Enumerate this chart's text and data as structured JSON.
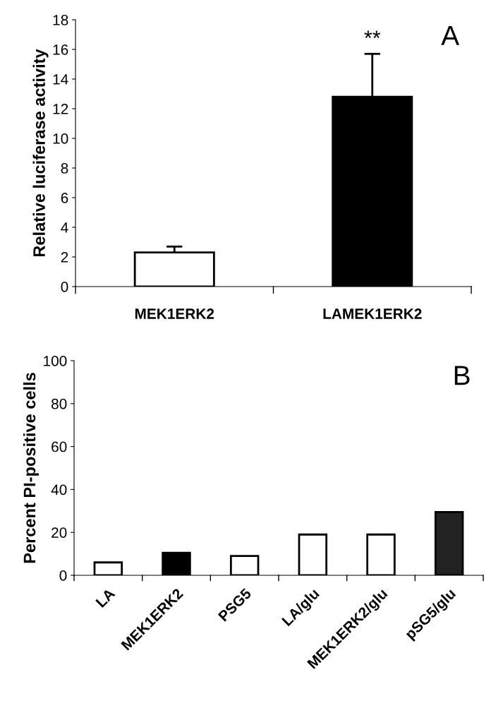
{
  "chart_data": [
    {
      "type": "bar",
      "ylabel": "Relative luciferase activity",
      "categories": [
        "MEK1ERK2",
        "LAMEK1ERK2"
      ],
      "values": [
        2.3,
        12.8
      ],
      "colors": [
        "#ffffff",
        "#000000"
      ],
      "errors": [
        0.4,
        2.9
      ],
      "ylim": [
        0,
        18
      ],
      "yticks": [
        0,
        2,
        4,
        6,
        8,
        10,
        12,
        14,
        16,
        18
      ],
      "annotations": [
        "**",
        "A"
      ]
    },
    {
      "type": "bar",
      "ylabel": "Percent PI-positive cells",
      "categories": [
        "LA",
        "MEK1ERK2",
        "PSG5",
        "LA/glu",
        "MEK1ERK2/glu",
        "pSG5/glu"
      ],
      "values": [
        6,
        10.5,
        9,
        19,
        19,
        29.5
      ],
      "colors": [
        "#ffffff",
        "#000000",
        "#ffffff",
        "#ffffff",
        "#ffffff",
        "#222222"
      ],
      "ylim": [
        0,
        100
      ],
      "yticks": [
        0,
        20,
        40,
        60,
        80,
        100
      ],
      "annotations": [
        "B"
      ]
    }
  ]
}
